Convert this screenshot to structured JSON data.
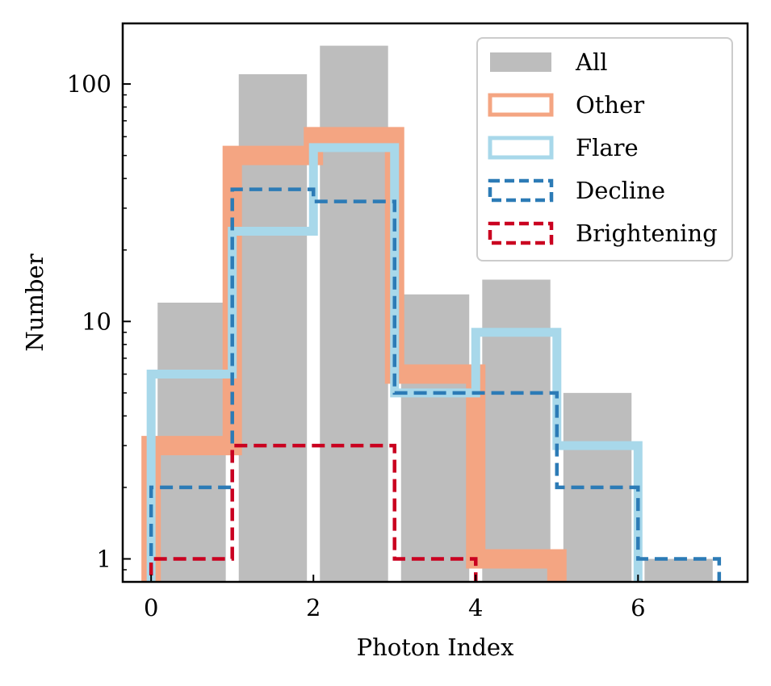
{
  "chart_data": {
    "type": "bar",
    "xlabel": "Photon Index",
    "ylabel": "Number",
    "xlim": [
      -0.35,
      7.35
    ],
    "ylim": [
      0.8,
      180
    ],
    "yscale": "log",
    "bin_edges": [
      0,
      1,
      2,
      3,
      4,
      5,
      6,
      7
    ],
    "xticks": [
      0,
      2,
      4,
      6
    ],
    "xtick_labels": [
      "0",
      "2",
      "4",
      "6"
    ],
    "yticks": [
      1,
      10,
      100
    ],
    "ytick_labels": [
      "1",
      "10",
      "100"
    ],
    "legend_position": "top-right",
    "series": [
      {
        "name": "All",
        "style": "filled-bar",
        "color": "#bdbdbd",
        "values": [
          12,
          110,
          145,
          13,
          15,
          5,
          1
        ]
      },
      {
        "name": "Other",
        "style": "step-thick",
        "color": "#f4a582",
        "values": [
          3,
          50,
          60,
          6,
          1,
          0,
          0
        ]
      },
      {
        "name": "Flare",
        "style": "step-thick",
        "color": "#a8d8ea",
        "values": [
          6,
          24,
          54,
          5,
          9,
          3,
          0
        ]
      },
      {
        "name": "Decline",
        "style": "step-dashed",
        "color": "#2c7bb6",
        "values": [
          2,
          36,
          32,
          5,
          5,
          2,
          1
        ]
      },
      {
        "name": "Brightening",
        "style": "step-dashed",
        "color": "#ca0020",
        "values": [
          1,
          3,
          3,
          1,
          0,
          0,
          0
        ]
      }
    ]
  }
}
